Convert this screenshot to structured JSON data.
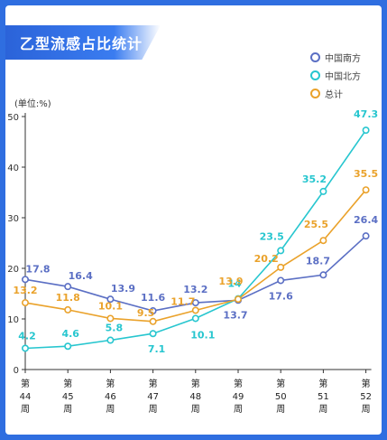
{
  "title": "乙型流感占比统计",
  "unit_label": "(单位:%)",
  "legend": [
    {
      "label": "中国南方",
      "color": "#5b6fc4"
    },
    {
      "label": "中国北方",
      "color": "#27c6cf"
    },
    {
      "label": "总计",
      "color": "#eaa22b"
    }
  ],
  "chart_data": {
    "type": "line",
    "ylabel": "(单位:%)",
    "ylim": [
      0,
      50
    ],
    "yticks": [
      0,
      10,
      20,
      30,
      40,
      50
    ],
    "categories": [
      "第\n44\n周",
      "第\n45\n周",
      "第\n46\n周",
      "第\n47\n周",
      "第\n48\n周",
      "第\n49\n周",
      "第\n50\n周",
      "第\n51\n周",
      "第\n52\n周"
    ],
    "category_lines": [
      [
        "第",
        "44",
        "周"
      ],
      [
        "第",
        "45",
        "周"
      ],
      [
        "第",
        "46",
        "周"
      ],
      [
        "第",
        "47",
        "周"
      ],
      [
        "第",
        "48",
        "周"
      ],
      [
        "第",
        "49",
        "周"
      ],
      [
        "第",
        "50",
        "周"
      ],
      [
        "第",
        "51",
        "周"
      ],
      [
        "第",
        "52",
        "周"
      ]
    ],
    "series": [
      {
        "name": "中国南方",
        "color": "#5b6fc4",
        "values": [
          17.8,
          16.4,
          13.9,
          11.6,
          13.2,
          13.7,
          17.6,
          18.7,
          26.4
        ],
        "labels": [
          "17.8",
          "16.4",
          "13.9",
          "11.6",
          "13.2",
          "13.7",
          "17.6",
          "18.7",
          "26.4"
        ]
      },
      {
        "name": "中国北方",
        "color": "#27c6cf",
        "values": [
          4.2,
          4.6,
          5.8,
          7.1,
          10.1,
          14,
          23.5,
          35.2,
          47.3
        ],
        "labels": [
          "4.2",
          "4.6",
          "5.8",
          "7.1",
          "10.1",
          "14",
          "23.5",
          "35.2",
          "47.3"
        ]
      },
      {
        "name": "总计",
        "color": "#eaa22b",
        "values": [
          13.2,
          11.8,
          10.1,
          9.5,
          11.7,
          13.9,
          20.2,
          25.5,
          35.5
        ],
        "labels": [
          "13.2",
          "11.8",
          "10.1",
          "9.5",
          "11.7",
          "13.9",
          "20.2",
          "25.5",
          "35.5"
        ]
      }
    ],
    "grid": false,
    "legend_position": "top-right"
  }
}
